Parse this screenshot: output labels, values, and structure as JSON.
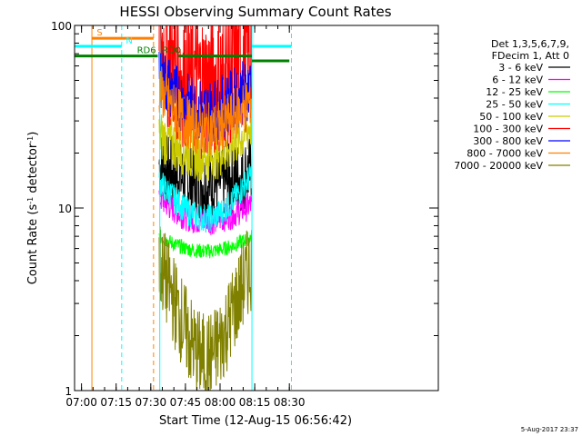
{
  "chart_data": {
    "type": "line",
    "title": "HESSI Observing Summary Count Rates",
    "xlabel": "Start Time (12-Aug-15 06:56:42)",
    "ylabel_main": "Count Rate (s",
    "ylabel_sup1": "-1",
    "ylabel_mid": " detector",
    "ylabel_sup2": "-1",
    "ylabel_end": ")",
    "y_scale": "log",
    "ylim": [
      1,
      100
    ],
    "xlim_minutes": [
      6.95,
      9.575
    ],
    "x_ticks": [
      {
        "t": 7.0,
        "label": "07:00"
      },
      {
        "t": 7.25,
        "label": "07:15"
      },
      {
        "t": 7.5,
        "label": "07:30"
      },
      {
        "t": 7.75,
        "label": "07:45"
      },
      {
        "t": 8.0,
        "label": "08:00"
      },
      {
        "t": 8.25,
        "label": "08:15"
      },
      {
        "t": 8.5,
        "label": "08:30"
      }
    ],
    "y_ticks": [
      {
        "v": 1,
        "label": "1"
      },
      {
        "v": 10,
        "label": "10"
      },
      {
        "v": 100,
        "label": "100"
      }
    ],
    "legend": {
      "header1": "Det 1,3,5,6,7,9,",
      "header2": "FDecim 1, Att 0",
      "placement": "right"
    },
    "series": [
      {
        "name": "3 - 6 keV",
        "color": "#000000",
        "start": 17.5,
        "end": 16.0,
        "mid": 13.5,
        "spread": 1.6
      },
      {
        "name": "6 - 12 keV",
        "color": "#ff00ff",
        "start": 11.5,
        "end": 10.5,
        "mid": 8.5,
        "spread": 1.2
      },
      {
        "name": "12 - 25 keV",
        "color": "#00ff00",
        "start": 7.0,
        "end": 7.0,
        "mid": 5.8,
        "spread": 1.1
      },
      {
        "name": "25 - 50 keV",
        "color": "#00ffff",
        "start": 14.0,
        "end": 15.5,
        "mid": 8.8,
        "spread": 1.2
      },
      {
        "name": "50 - 100 keV",
        "color": "#cccc00",
        "start": 25.0,
        "end": 29.0,
        "mid": 19.5,
        "spread": 1.4
      },
      {
        "name": "100 - 300 keV",
        "color": "#ff0000",
        "start": 80.0,
        "end": 74.0,
        "mid": 48.0,
        "spread": 2.6
      },
      {
        "name": "300 - 800 keV",
        "color": "#0000ff",
        "start": 55.0,
        "end": 47.0,
        "mid": 34.0,
        "spread": 1.5
      },
      {
        "name": "800 - 7000 keV",
        "color": "#ff8000",
        "start": 45.0,
        "end": 40.0,
        "mid": 27.0,
        "spread": 1.4
      },
      {
        "name": "7000 - 20000 keV",
        "color": "#808000",
        "start": 5.0,
        "end": 5.0,
        "mid": 1.5,
        "spread": 1.8
      }
    ],
    "time_window": {
      "start": 7.56,
      "end": 8.23
    },
    "markers": {
      "vlines": [
        {
          "t": 7.075,
          "color": "#ff8000",
          "style": "solid"
        },
        {
          "t": 7.29,
          "color": "#00ffff",
          "style": "dashed"
        },
        {
          "t": 7.52,
          "color": "#ff8000",
          "style": "dashed"
        },
        {
          "t": 7.565,
          "color": "#00ffff",
          "style": "solid"
        },
        {
          "t": 8.23,
          "color": "#00ffff",
          "style": "solid"
        },
        {
          "t": 8.515,
          "color": "#00ffff",
          "style": "dashed"
        }
      ],
      "bands": [
        {
          "label": "S",
          "color": "#ff8000",
          "t0": 7.075,
          "t1": 7.52,
          "y": 85,
          "label_t": 7.11
        },
        {
          "label": "N",
          "color": "#00ffff",
          "t0": 6.95,
          "t1": 7.29,
          "y": 77,
          "label_t": 7.32
        },
        {
          "label": "",
          "color": "#00ffff",
          "t0": 8.23,
          "t1": 8.515,
          "y": 77,
          "label_t": 8.3
        },
        {
          "label": "RD0",
          "color": "#008000",
          "t0": 7.7,
          "t1": 8.23,
          "y": 68,
          "label_t": 7.58
        },
        {
          "label": "RD6",
          "color": "#008000",
          "t0": 6.95,
          "t1": 7.55,
          "y": 68,
          "label_t": 7.4
        },
        {
          "label": "",
          "color": "#008000",
          "t0": 8.23,
          "t1": 8.5,
          "y": 64,
          "label_t": 8.3
        }
      ]
    },
    "timestamp": "5-Aug-2017 23:37"
  }
}
